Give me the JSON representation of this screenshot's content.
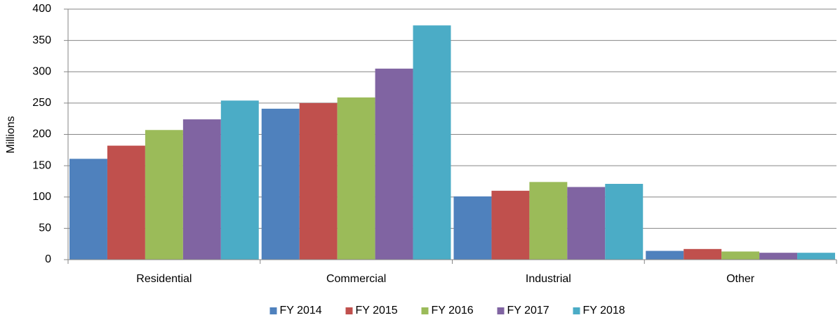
{
  "chart_data": {
    "type": "bar",
    "y_label": "Millions",
    "categories": [
      "Residential",
      "Commercial",
      "Industrial",
      "Other"
    ],
    "series": [
      {
        "name": "FY 2014",
        "color": "#4f81bd",
        "values": [
          161,
          241,
          101,
          14
        ]
      },
      {
        "name": "FY 2015",
        "color": "#c0504d",
        "values": [
          182,
          250,
          110,
          17
        ]
      },
      {
        "name": "FY 2016",
        "color": "#9bbb59",
        "values": [
          207,
          259,
          124,
          13
        ]
      },
      {
        "name": "FY 2017",
        "color": "#8064a2",
        "values": [
          224,
          305,
          116,
          11
        ]
      },
      {
        "name": "FY 2018",
        "color": "#4bacc6",
        "values": [
          254,
          374,
          121,
          11
        ]
      }
    ],
    "ylim": [
      0,
      400
    ],
    "yticks": [
      0,
      50,
      100,
      150,
      200,
      250,
      300,
      350,
      400
    ],
    "grid": true,
    "legend": "bottom"
  }
}
